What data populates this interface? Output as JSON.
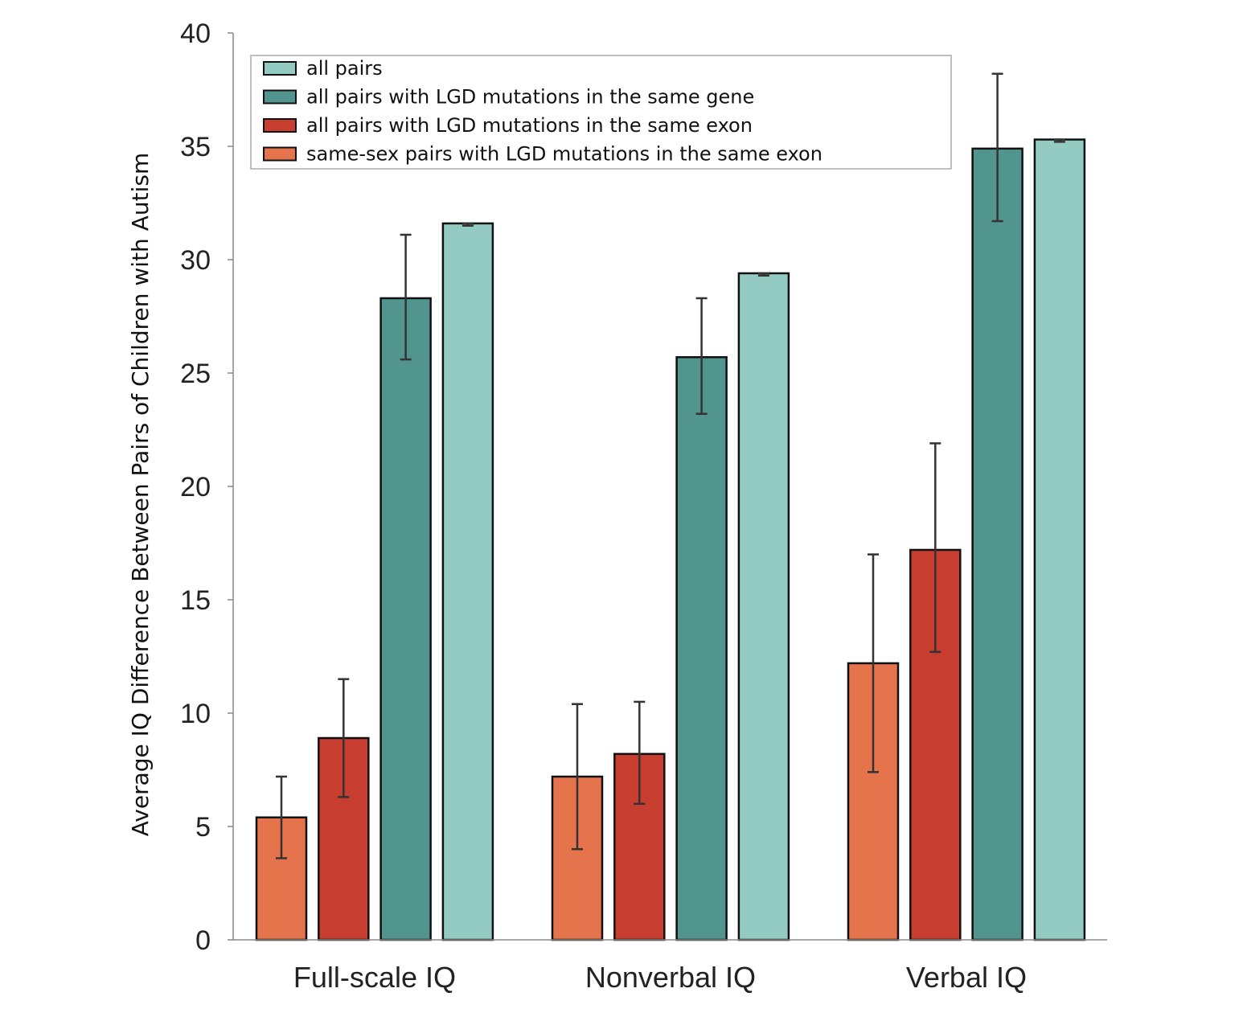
{
  "chart_data": {
    "type": "bar",
    "title": "",
    "xlabel": "",
    "ylabel": "Average IQ Difference Between Pairs of Children with Autism",
    "ylim": [
      0,
      40
    ],
    "yticks": [
      "0",
      "5",
      "10",
      "15",
      "20",
      "25",
      "30",
      "35",
      "40"
    ],
    "grid": false,
    "legend_position": "top",
    "categories": [
      "Full-scale IQ",
      "Nonverbal IQ",
      "Verbal IQ"
    ],
    "series": [
      {
        "name": "same-sex pairs with LGD mutations in the same exon",
        "color": "#e5734c",
        "values": [
          5.4,
          7.2,
          12.2
        ],
        "error_low": [
          3.6,
          4.0,
          7.4
        ],
        "error_high": [
          7.2,
          10.4,
          17.0
        ]
      },
      {
        "name": "all pairs with LGD mutations in the same exon",
        "color": "#c73d30",
        "values": [
          8.9,
          8.2,
          17.2
        ],
        "error_low": [
          6.3,
          6.0,
          12.7
        ],
        "error_high": [
          11.5,
          10.5,
          21.9
        ]
      },
      {
        "name": "all pairs with LGD mutations in the same gene",
        "color": "#52958f",
        "values": [
          28.3,
          25.7,
          34.9
        ],
        "error_low": [
          25.6,
          23.2,
          31.7
        ],
        "error_high": [
          31.1,
          28.3,
          38.2
        ]
      },
      {
        "name": "all pairs",
        "color": "#93cbc2",
        "values": [
          31.6,
          29.4,
          35.3
        ],
        "error_low": [
          31.5,
          29.3,
          35.2
        ],
        "error_high": [
          31.6,
          29.4,
          35.3
        ]
      }
    ],
    "legend_order": [
      3,
      2,
      1,
      0
    ]
  }
}
